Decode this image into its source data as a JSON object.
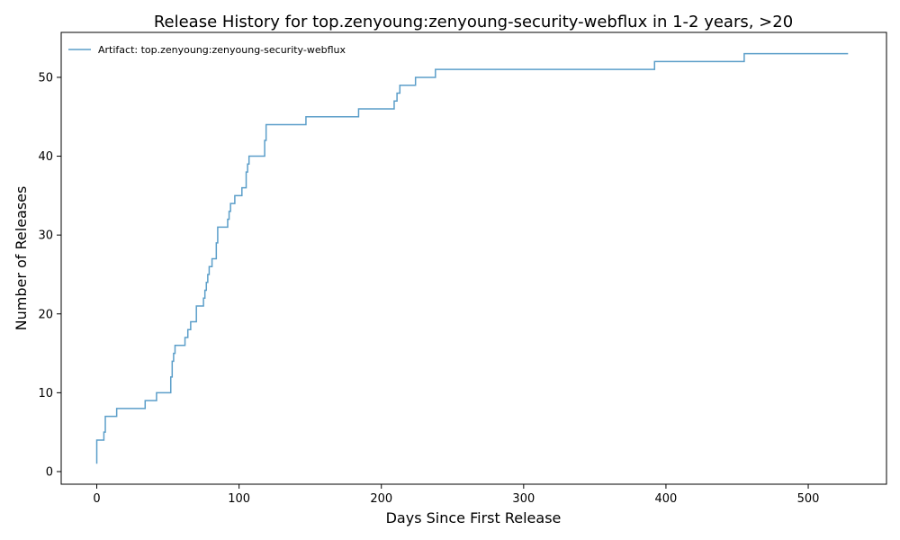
{
  "chart_data": {
    "type": "line",
    "step": true,
    "title": "Release History for top.zenyoung:zenyoung-security-webflux in 1-2 years, >20",
    "xlabel": "Days Since First Release",
    "ylabel": "Number of Releases",
    "xlim": [
      -25,
      555
    ],
    "ylim": [
      -1.6,
      55.7
    ],
    "xticks": [
      0,
      100,
      200,
      300,
      400,
      500
    ],
    "yticks": [
      0,
      10,
      20,
      30,
      40,
      50
    ],
    "grid": false,
    "legend_position": "top-left",
    "line_color": "#5b9ec9",
    "series": [
      {
        "name": "Artifact: top.zenyoung:zenyoung-security-webflux",
        "x": [
          0,
          0,
          5,
          6,
          14,
          34,
          42,
          52,
          53,
          54,
          55,
          56,
          62,
          64,
          66,
          70,
          75,
          76,
          77,
          78,
          79,
          81,
          84,
          85,
          85,
          86,
          92,
          93,
          94,
          97,
          102,
          105,
          105,
          106,
          107,
          111,
          118,
          119,
          120,
          147,
          184,
          209,
          211,
          212,
          213,
          224,
          238,
          392,
          455,
          528
        ],
        "y": [
          1,
          4,
          5,
          7,
          8,
          9,
          10,
          12,
          14,
          15,
          16,
          16,
          17,
          18,
          19,
          21,
          22,
          23,
          24,
          25,
          26,
          27,
          29,
          30,
          31,
          31,
          32,
          33,
          34,
          35,
          36,
          37,
          38,
          39,
          40,
          40,
          42,
          44,
          44,
          45,
          46,
          47,
          48,
          48,
          49,
          50,
          51,
          52,
          53,
          53
        ]
      }
    ]
  }
}
